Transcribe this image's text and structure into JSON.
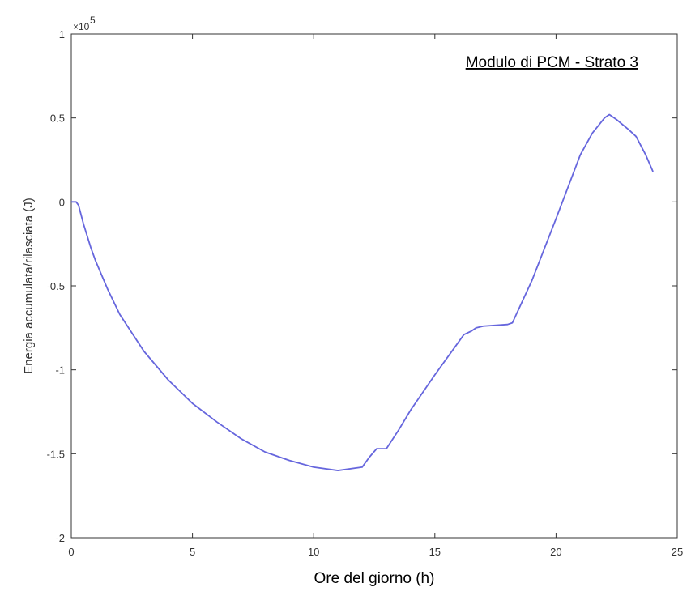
{
  "chart_data": {
    "type": "line",
    "annotation": "Modulo di PCM - Strato 3",
    "xlabel": "Ore del giorno (h)",
    "ylabel": "Energia accumulata/rilasciata (J)",
    "y_exponent_label": "×10",
    "y_exponent_power": "5",
    "xlim": [
      0,
      25
    ],
    "ylim": [
      -2,
      1
    ],
    "x_ticks": [
      0,
      5,
      10,
      15,
      20,
      25
    ],
    "x_tick_labels": [
      "0",
      "5",
      "10",
      "15",
      "20",
      "25"
    ],
    "y_ticks": [
      -2,
      -1.5,
      -1,
      -0.5,
      0,
      0.5,
      1
    ],
    "y_tick_labels": [
      "-2",
      "-1.5",
      "-1",
      "-0.5",
      "0",
      "0.5",
      "1"
    ],
    "grid": false,
    "line_color": "#6666dd",
    "series": [
      {
        "x": [
          0,
          0.2,
          0.3,
          0.5,
          0.8,
          1.0,
          1.5,
          2.0,
          3.0,
          4.0,
          5.0,
          6.0,
          7.0,
          8.0,
          9.0,
          10.0,
          11.0,
          12.0,
          12.3,
          12.6,
          12.8,
          13.0,
          13.5,
          14.0,
          15.0,
          16.0,
          16.2,
          16.5,
          16.7,
          17.0,
          18.0,
          18.2,
          19.0,
          20.0,
          21.0,
          21.5,
          22.0,
          22.2,
          22.5,
          23.0,
          23.3,
          23.7,
          24.0
        ],
        "y": [
          0.0,
          0.0,
          -0.02,
          -0.13,
          -0.27,
          -0.35,
          -0.52,
          -0.67,
          -0.89,
          -1.06,
          -1.2,
          -1.31,
          -1.41,
          -1.49,
          -1.54,
          -1.58,
          -1.6,
          -1.58,
          -1.52,
          -1.47,
          -1.47,
          -1.47,
          -1.36,
          -1.24,
          -1.03,
          -0.83,
          -0.79,
          -0.77,
          -0.75,
          -0.74,
          -0.73,
          -0.72,
          -0.47,
          -0.1,
          0.28,
          0.41,
          0.5,
          0.52,
          0.49,
          0.43,
          0.39,
          0.28,
          0.18
        ]
      }
    ]
  }
}
